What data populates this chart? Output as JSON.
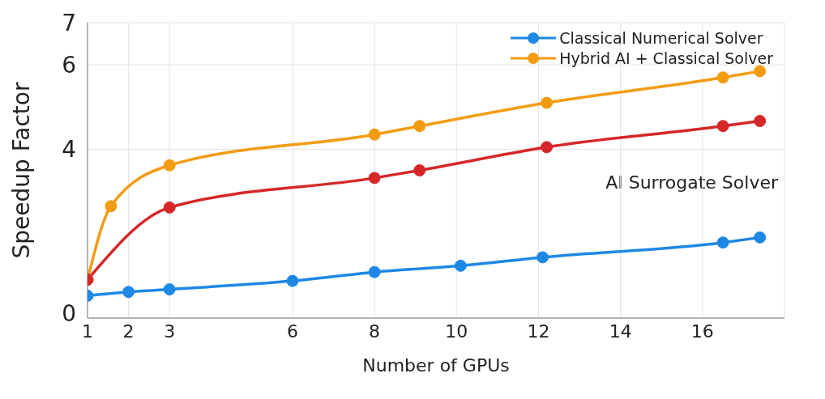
{
  "chart_data": {
    "type": "line",
    "xlabel": "Number of GPUs",
    "ylabel": "Speedup Factor",
    "xlim": [
      1,
      18
    ],
    "xticks": [
      1,
      2,
      3,
      6,
      8,
      10,
      12,
      14,
      16
    ],
    "ylim": [
      0,
      7
    ],
    "yticks": [
      0,
      4,
      6,
      7
    ],
    "grid": true,
    "legend": "top right",
    "marker": "circle",
    "line_style": "solid",
    "series": [
      {
        "name": "Classical Numerical Solver",
        "color": "#1e88e5",
        "x": [
          1,
          2,
          3,
          6,
          8,
          10.1,
          12.1,
          16.5,
          17.4
        ],
        "values": [
          0.53,
          0.62,
          0.68,
          0.88,
          1.09,
          1.24,
          1.44,
          1.79,
          1.91
        ]
      },
      {
        "name": "Hybrid AI + Classical Solver",
        "color": "#f39c12",
        "x": [
          1,
          1.57,
          3,
          8,
          9.1,
          12.2,
          16.5,
          17.4
        ],
        "values": [
          0.91,
          2.65,
          3.62,
          4.35,
          4.55,
          5.1,
          5.7,
          5.85
        ]
      },
      {
        "color": "#d62728",
        "x": [
          1,
          3,
          8,
          9.1,
          12.2,
          16.5,
          17.4
        ],
        "values": [
          0.91,
          2.62,
          3.32,
          3.5,
          4.05,
          4.55,
          4.67
        ]
      }
    ],
    "annotations": [
      "AI Surrogate Solver"
    ]
  }
}
